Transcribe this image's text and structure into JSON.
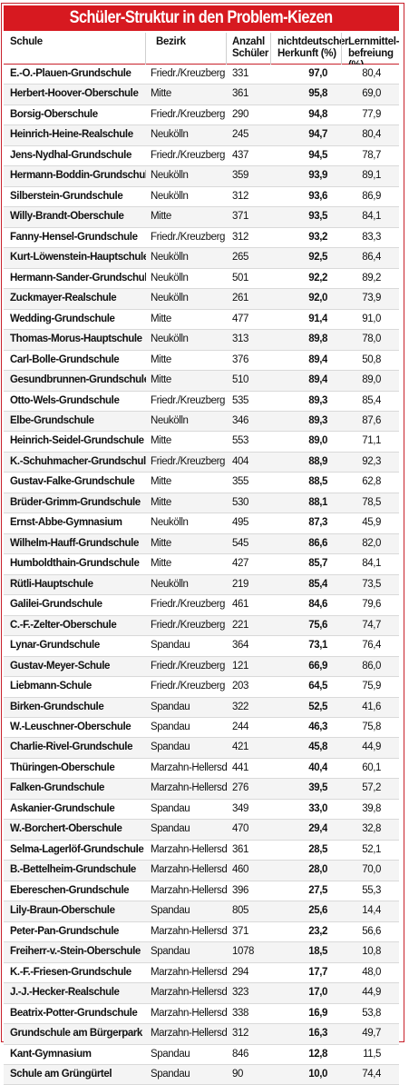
{
  "title": "Schüler-Struktur in den Problem-Kiezen",
  "columns": {
    "schule": "Schule",
    "bezirk": "Bezirk",
    "anzahl": [
      "Anzahl",
      "Schüler"
    ],
    "herkunft": [
      "nichtdeutscher",
      "Herkunft (%)"
    ],
    "lernmittel": [
      "Lernmittel-",
      "befreiung (%)"
    ]
  },
  "rows": [
    [
      "E.-O.-Plauen-Grundschule",
      "Friedr./Kreuzberg",
      "331",
      "97,0",
      "80,4"
    ],
    [
      "Herbert-Hoover-Oberschule",
      "Mitte",
      "361",
      "95,8",
      "69,0"
    ],
    [
      "Borsig-Oberschule",
      "Friedr./Kreuzberg",
      "290",
      "94,8",
      "77,9"
    ],
    [
      "Heinrich-Heine-Realschule",
      "Neukölln",
      "245",
      "94,7",
      "80,4"
    ],
    [
      "Jens-Nydhal-Grundschule",
      "Friedr./Kreuzberg",
      "437",
      "94,5",
      "78,7"
    ],
    [
      "Hermann-Boddin-Grundschule",
      "Neukölln",
      "359",
      "93,9",
      "89,1"
    ],
    [
      "Silberstein-Grundschule",
      "Neukölln",
      "312",
      "93,6",
      "86,9"
    ],
    [
      "Willy-Brandt-Oberschule",
      "Mitte",
      "371",
      "93,5",
      "84,1"
    ],
    [
      "Fanny-Hensel-Grundschule",
      "Friedr./Kreuzberg",
      "312",
      "93,2",
      "83,3"
    ],
    [
      "Kurt-Löwenstein-Hauptschule",
      "Neukölln",
      "265",
      "92,5",
      "86,4"
    ],
    [
      "Hermann-Sander-Grundschule",
      "Neukölln",
      "501",
      "92,2",
      "89,2"
    ],
    [
      "Zuckmayer-Realschule",
      "Neukölln",
      "261",
      "92,0",
      "73,9"
    ],
    [
      "Wedding-Grundschule",
      "Mitte",
      "477",
      "91,4",
      "91,0"
    ],
    [
      "Thomas-Morus-Hauptschule",
      "Neukölln",
      "313",
      "89,8",
      "78,0"
    ],
    [
      "Carl-Bolle-Grundschule",
      "Mitte",
      "376",
      "89,4",
      "50,8"
    ],
    [
      "Gesundbrunnen-Grundschule",
      "Mitte",
      "510",
      "89,4",
      "89,0"
    ],
    [
      "Otto-Wels-Grundschule",
      "Friedr./Kreuzberg",
      "535",
      "89,3",
      "85,4"
    ],
    [
      "Elbe-Grundschule",
      "Neukölln",
      "346",
      "89,3",
      "87,6"
    ],
    [
      "Heinrich-Seidel-Grundschule",
      "Mitte",
      "553",
      "89,0",
      "71,1"
    ],
    [
      "K.-Schuhmacher-Grundschule",
      "Friedr./Kreuzberg",
      "404",
      "88,9",
      "92,3"
    ],
    [
      "Gustav-Falke-Grundschule",
      "Mitte",
      "355",
      "88,5",
      "62,8"
    ],
    [
      "Brüder-Grimm-Grundschule",
      "Mitte",
      "530",
      "88,1",
      "78,5"
    ],
    [
      "Ernst-Abbe-Gymnasium",
      "Neukölln",
      "495",
      "87,3",
      "45,9"
    ],
    [
      "Wilhelm-Hauff-Grundschule",
      "Mitte",
      "545",
      "86,6",
      "82,0"
    ],
    [
      "Humboldthain-Grundschule",
      "Mitte",
      "427",
      "85,7",
      "84,1"
    ],
    [
      "Rütli-Hauptschule",
      "Neukölln",
      "219",
      "85,4",
      "73,5"
    ],
    [
      "Galilei-Grundschule",
      "Friedr./Kreuzberg",
      "461",
      "84,6",
      "79,6"
    ],
    [
      "C.-F.-Zelter-Oberschule",
      "Friedr./Kreuzberg",
      "221",
      "75,6",
      "74,7"
    ],
    [
      "Lynar-Grundschule",
      "Spandau",
      "364",
      "73,1",
      "76,4"
    ],
    [
      "Gustav-Meyer-Schule",
      "Friedr./Kreuzberg",
      "121",
      "66,9",
      "86,0"
    ],
    [
      "Liebmann-Schule",
      "Friedr./Kreuzberg",
      "203",
      "64,5",
      "75,9"
    ],
    [
      "Birken-Grundschule",
      "Spandau",
      "322",
      "52,5",
      "41,6"
    ],
    [
      "W.-Leuschner-Oberschule",
      "Spandau",
      "244",
      "46,3",
      "75,8"
    ],
    [
      "Charlie-Rivel-Grundschule",
      "Spandau",
      "421",
      "45,8",
      "44,9"
    ],
    [
      "Thüringen-Oberschule",
      "Marzahn-Hellersd.",
      "441",
      "40,4",
      "60,1"
    ],
    [
      "Falken-Grundschule",
      "Marzahn-Hellersd.",
      "276",
      "39,5",
      "57,2"
    ],
    [
      "Askanier-Grundschule",
      "Spandau",
      "349",
      "33,0",
      "39,8"
    ],
    [
      "W.-Borchert-Oberschule",
      "Spandau",
      "470",
      "29,4",
      "32,8"
    ],
    [
      "Selma-Lagerlöf-Grundschule",
      "Marzahn-Hellersd.",
      "361",
      "28,5",
      "52,1"
    ],
    [
      "B.-Bettelheim-Grundschule",
      "Marzahn-Hellersd.",
      "460",
      "28,0",
      "70,0"
    ],
    [
      "Ebereschen-Grundschule",
      "Marzahn-Hellersd.",
      "396",
      "27,5",
      "55,3"
    ],
    [
      "Lily-Braun-Oberschule",
      "Spandau",
      "805",
      "25,6",
      "14,4"
    ],
    [
      "Peter-Pan-Grundschule",
      "Marzahn-Hellersd.",
      "371",
      "23,2",
      "56,6"
    ],
    [
      "Freiherr-v.-Stein-Oberschule",
      "Spandau",
      "1078",
      "18,5",
      "10,8"
    ],
    [
      "K.-F.-Friesen-Grundschule",
      "Marzahn-Hellersd.",
      "294",
      "17,7",
      "48,0"
    ],
    [
      "J.-J.-Hecker-Realschule",
      "Marzahn-Hellersd.",
      "323",
      "17,0",
      "44,9"
    ],
    [
      "Beatrix-Potter-Grundschule",
      "Marzahn-Hellersd.",
      "338",
      "16,9",
      "53,8"
    ],
    [
      "Grundschule am Bürgerpark",
      "Marzahn-Hellersd.",
      "312",
      "16,3",
      "49,7"
    ],
    [
      "Kant-Gymnasium",
      "Spandau",
      "846",
      "12,8",
      "11,5"
    ],
    [
      "Schule am Grüngürtel",
      "Spandau",
      "90",
      "10,0",
      "74,4"
    ]
  ]
}
